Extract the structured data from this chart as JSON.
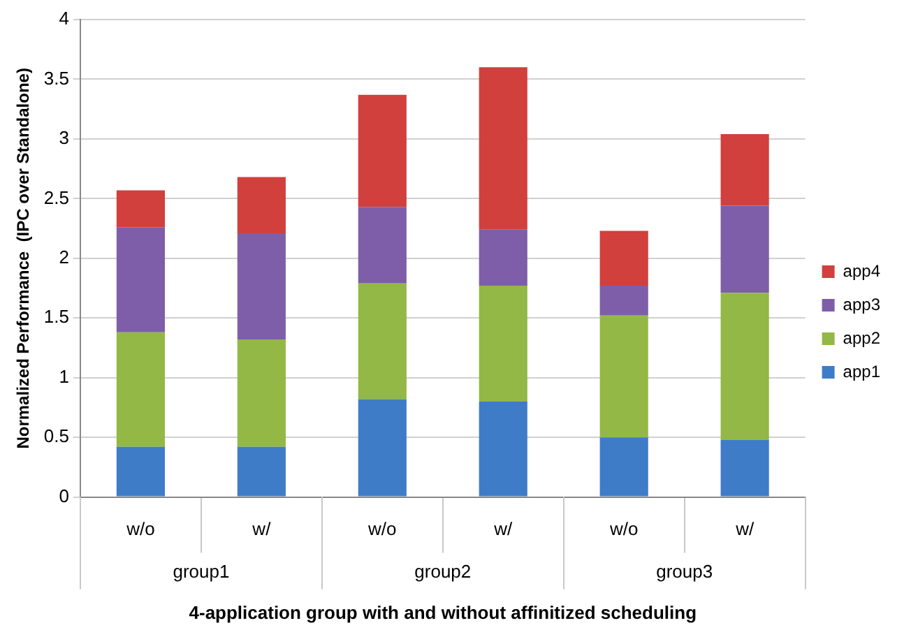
{
  "chart_data": {
    "type": "bar",
    "stacked": true,
    "xlabel": "4-application group with and without affinitized scheduling",
    "ylabel": "Normalized Performance  (IPC over Standalone)",
    "categories": [
      "w/o",
      "w/",
      "w/o",
      "w/",
      "w/o",
      "w/"
    ],
    "annotations": [
      "group1",
      "group2",
      "group3"
    ],
    "series": [
      {
        "name": "app1",
        "color": "#3f7cc8",
        "values": [
          0.42,
          0.42,
          0.82,
          0.8,
          0.5,
          0.48
        ]
      },
      {
        "name": "app2",
        "color": "#93b845",
        "values": [
          0.96,
          0.9,
          0.97,
          0.97,
          1.02,
          1.23
        ]
      },
      {
        "name": "app3",
        "color": "#7e5ea8",
        "values": [
          0.88,
          0.89,
          0.64,
          0.47,
          0.25,
          0.73
        ]
      },
      {
        "name": "app4",
        "color": "#d1403c",
        "values": [
          0.31,
          0.47,
          0.94,
          1.36,
          0.46,
          0.6
        ]
      }
    ],
    "ylim": [
      0,
      4
    ],
    "yticks": [
      0,
      0.5,
      1,
      1.5,
      2,
      2.5,
      3,
      3.5,
      4
    ],
    "grid": "y",
    "legend": "right"
  }
}
